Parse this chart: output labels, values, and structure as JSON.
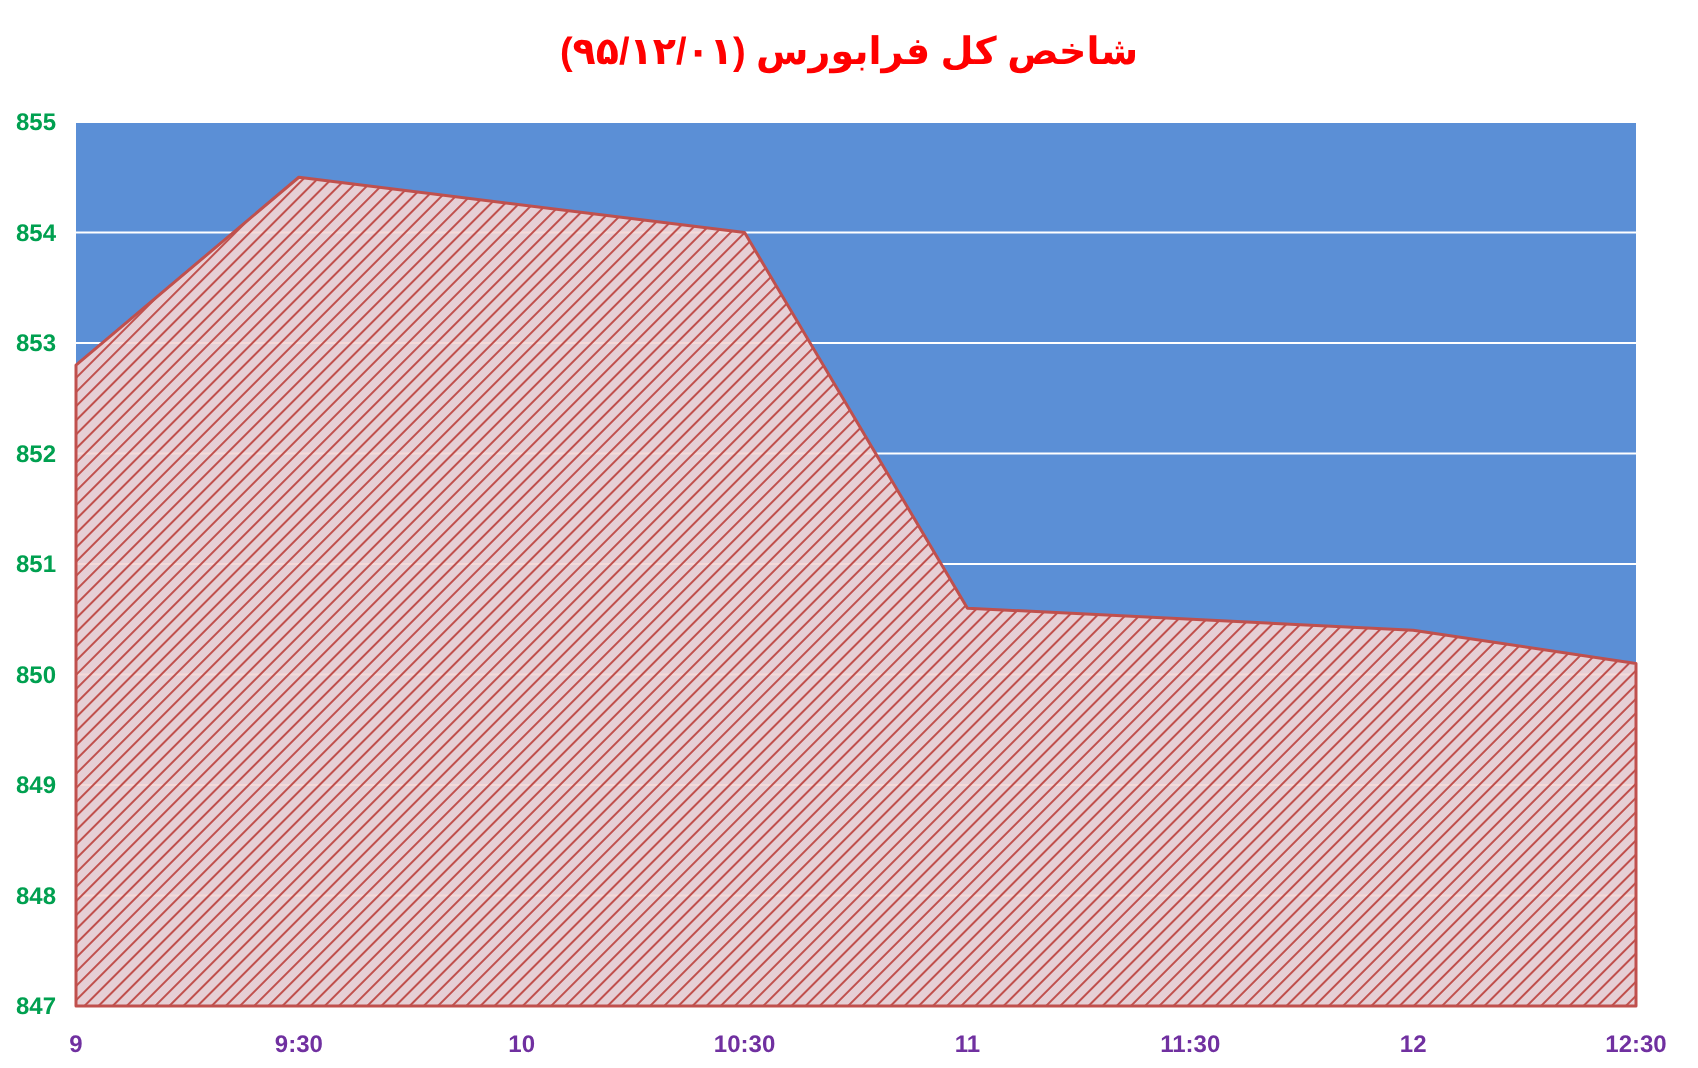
{
  "chart_data": {
    "type": "area",
    "title": "شاخص کل فرابورس (۹۵/۱۲/۰۱)",
    "x": [
      9,
      9.5,
      10.5,
      11,
      12,
      12.5
    ],
    "values": [
      852.8,
      854.5,
      854.0,
      850.6,
      850.4,
      850.1
    ],
    "color": "#c0504d",
    "xlim": [
      9,
      12.5
    ],
    "xticks": [
      9,
      {
        "value": 9.5,
        "label": "9:30"
      },
      10,
      {
        "value": 10.5,
        "label": "10:30"
      },
      11,
      {
        "value": 11.5,
        "label": "11:30"
      },
      12,
      {
        "value": 12.5,
        "label": "12:30"
      }
    ],
    "ylim": [
      847,
      855
    ],
    "yticks": [
      847,
      848,
      849,
      850,
      851,
      852,
      853,
      854,
      855
    ],
    "grid": "y",
    "bands": [
      {
        "axis": "y",
        "from": 847,
        "to": 855,
        "color": "#5b8fd6"
      }
    ]
  }
}
